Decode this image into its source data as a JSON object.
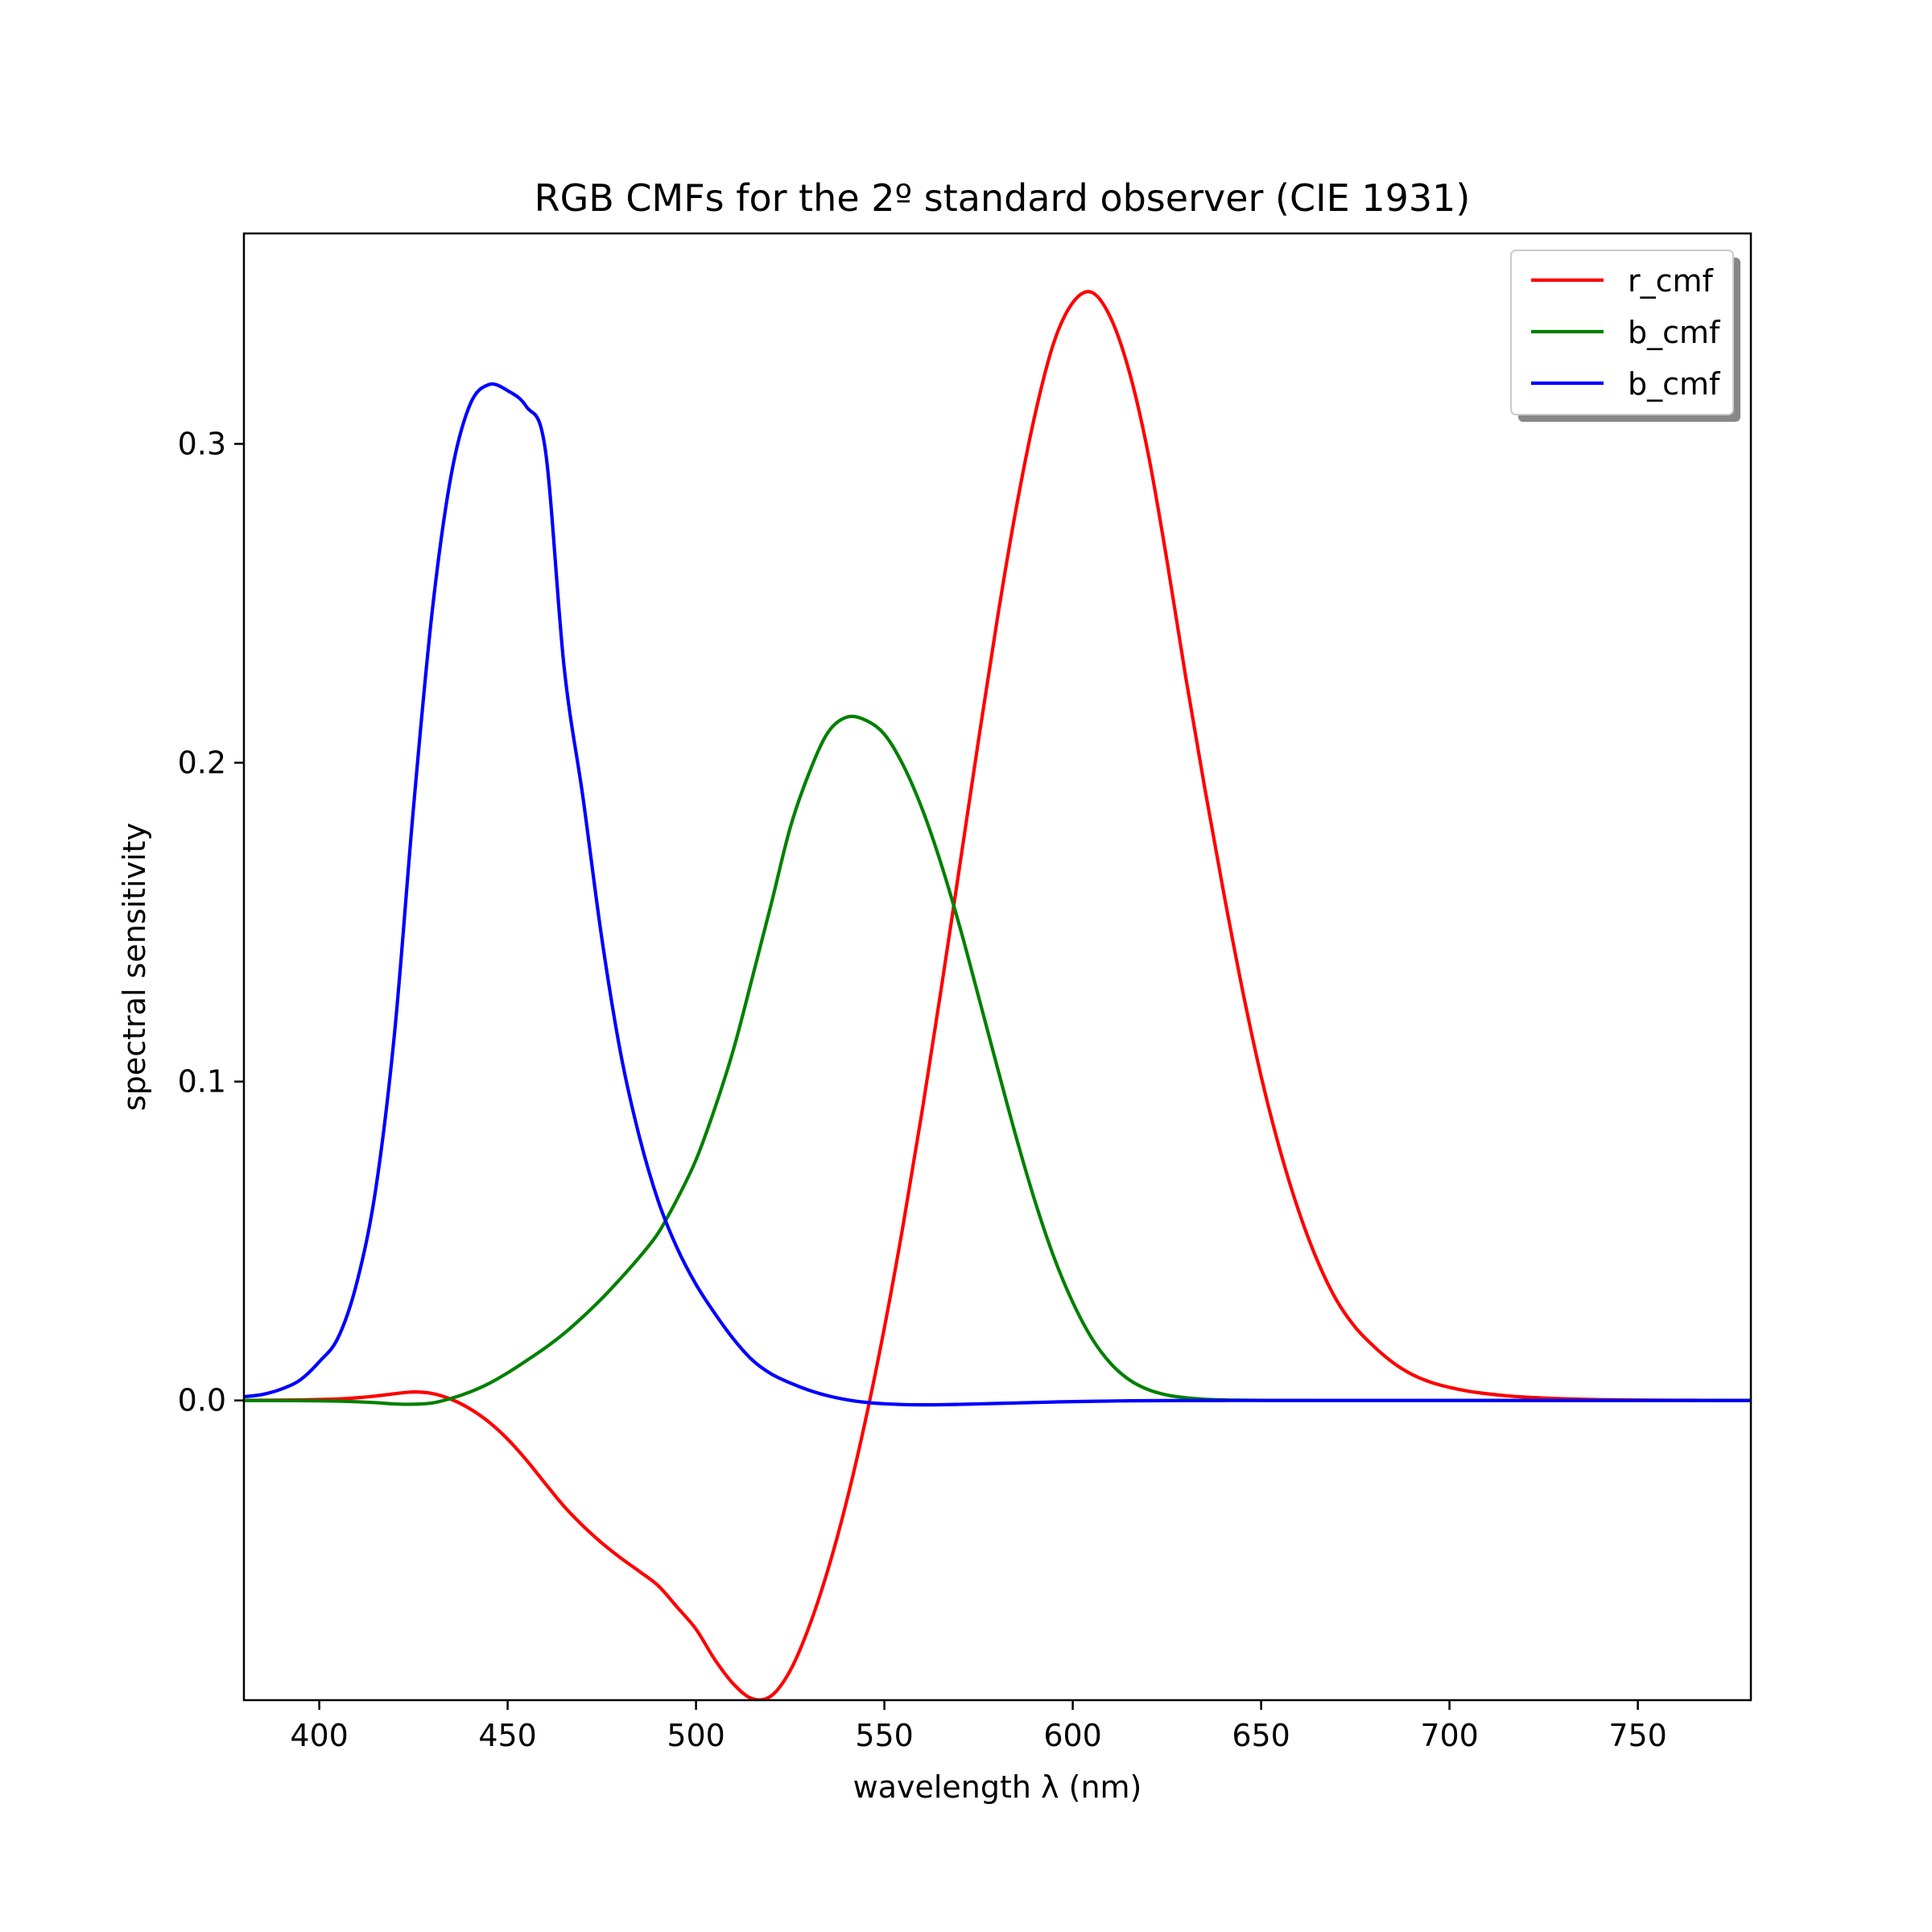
{
  "chart_data": {
    "type": "line",
    "title": "RGB CMFs for the 2º standard observer (CIE 1931)",
    "xlabel": "wavelength λ (nm)",
    "ylabel": "spectral sensitivity",
    "xlim": [
      380,
      780
    ],
    "ylim": [
      -0.094,
      0.366
    ],
    "xticks": [
      400,
      450,
      500,
      550,
      600,
      650,
      700,
      750
    ],
    "yticks": [
      0.0,
      0.1,
      0.2,
      0.3
    ],
    "xtick_labels": [
      "400",
      "450",
      "500",
      "550",
      "600",
      "650",
      "700",
      "750"
    ],
    "ytick_labels": [
      "0.0",
      "0.1",
      "0.2",
      "0.3"
    ],
    "grid": false,
    "legend_position": "top-right",
    "x": [
      380,
      385,
      390,
      395,
      400,
      405,
      410,
      415,
      420,
      425,
      430,
      435,
      440,
      445,
      450,
      455,
      460,
      465,
      470,
      475,
      480,
      485,
      490,
      495,
      500,
      505,
      510,
      515,
      520,
      525,
      530,
      535,
      540,
      545,
      550,
      555,
      560,
      565,
      570,
      575,
      580,
      585,
      590,
      595,
      600,
      605,
      610,
      615,
      620,
      625,
      630,
      635,
      640,
      645,
      650,
      655,
      660,
      665,
      670,
      675,
      680,
      685,
      690,
      695,
      700,
      705,
      710,
      715,
      720,
      725,
      730,
      735,
      740,
      745,
      750,
      755,
      760,
      765,
      770,
      775,
      780
    ],
    "series": [
      {
        "name": "r_cmf",
        "color": "#ff0000",
        "values": [
          3e-05,
          5e-05,
          0.0001,
          0.00017,
          0.0003,
          0.00047,
          0.00084,
          0.00139,
          0.00211,
          0.00266,
          0.00218,
          0.00036,
          -0.00261,
          -0.00673,
          -0.01213,
          -0.01874,
          -0.02608,
          -0.03324,
          -0.03933,
          -0.04471,
          -0.04939,
          -0.05364,
          -0.05814,
          -0.06484,
          -0.07173,
          -0.08129,
          -0.08901,
          -0.09357,
          -0.09264,
          -0.08473,
          -0.07101,
          -0.05316,
          -0.03152,
          -0.00613,
          0.02279,
          0.05514,
          0.0906,
          0.1284,
          0.16768,
          0.20715,
          0.24526,
          0.27989,
          0.30928,
          0.33184,
          0.34429,
          0.34756,
          0.33971,
          0.32265,
          0.29708,
          0.26348,
          0.22677,
          0.19233,
          0.15968,
          0.12905,
          0.10167,
          0.07857,
          0.05932,
          0.04366,
          0.03149,
          0.02294,
          0.01687,
          0.01187,
          0.00819,
          0.00572,
          0.0041,
          0.00291,
          0.0021,
          0.00148,
          0.00105,
          0.00074,
          0.00052,
          0.00036,
          0.00025,
          0.00017,
          0.00012,
          8e-05,
          6e-05,
          4e-05,
          3e-05,
          2e-05,
          1e-05
        ]
      },
      {
        "name": "b_cmf",
        "color": "#008000",
        "values": [
          -1e-05,
          -2e-05,
          -4e-05,
          -7e-05,
          -0.00012,
          -0.00022,
          -0.00041,
          -0.0007,
          -0.0011,
          -0.00119,
          -0.00079,
          0.00065,
          0.00265,
          0.00528,
          0.00866,
          0.01249,
          0.01651,
          0.02103,
          0.02625,
          0.03197,
          0.03826,
          0.04496,
          0.05258,
          0.06317,
          0.07547,
          0.09165,
          0.1103,
          0.13284,
          0.15588,
          0.1796,
          0.19674,
          0.20946,
          0.21429,
          0.21336,
          0.20894,
          0.19923,
          0.18561,
          0.16851,
          0.14863,
          0.12664,
          0.10439,
          0.08251,
          0.0624,
          0.04495,
          0.03079,
          0.01963,
          0.01168,
          0.00649,
          0.0034,
          0.0017,
          0.00083,
          0.00038,
          0.00017,
          7e-05,
          3e-05,
          2e-05,
          1e-05,
          0.0,
          0.0,
          0.0,
          0.0,
          0.0,
          0.0,
          0.0,
          0.0,
          0.0,
          0.0,
          0.0,
          0.0,
          0.0,
          0.0,
          0.0,
          0.0,
          0.0,
          0.0,
          0.0,
          0.0,
          0.0,
          0.0,
          0.0,
          0.0
        ]
      },
      {
        "name": "b_cmf",
        "color": "#0000ff",
        "values": [
          0.00117,
          0.00189,
          0.00359,
          0.00647,
          0.01214,
          0.01969,
          0.03707,
          0.06637,
          0.11541,
          0.18575,
          0.24769,
          0.29012,
          0.31228,
          0.3186,
          0.3167,
          0.31166,
          0.29821,
          0.22991,
          0.1891,
          0.14494,
          0.10888,
          0.08257,
          0.06246,
          0.04776,
          0.03638,
          0.02728,
          0.01919,
          0.01261,
          0.00829,
          0.00549,
          0.0032,
          0.00146,
          0.00023,
          -0.00058,
          -0.00105,
          -0.0013,
          -0.00138,
          -0.00135,
          -0.00123,
          -0.00108,
          -0.00093,
          -0.00079,
          -0.00063,
          -0.00049,
          -0.00036,
          -0.00027,
          -0.00019,
          -0.00012,
          -8e-05,
          -5e-05,
          -3e-05,
          -2e-05,
          -1e-05,
          0.0,
          0.0,
          0.0,
          0.0,
          0.0,
          0.0,
          0.0,
          0.0,
          0.0,
          0.0,
          0.0,
          0.0,
          0.0,
          0.0,
          0.0,
          0.0,
          0.0,
          0.0,
          0.0,
          0.0,
          0.0,
          0.0,
          0.0,
          0.0,
          0.0,
          0.0,
          0.0,
          0.0
        ]
      }
    ]
  }
}
